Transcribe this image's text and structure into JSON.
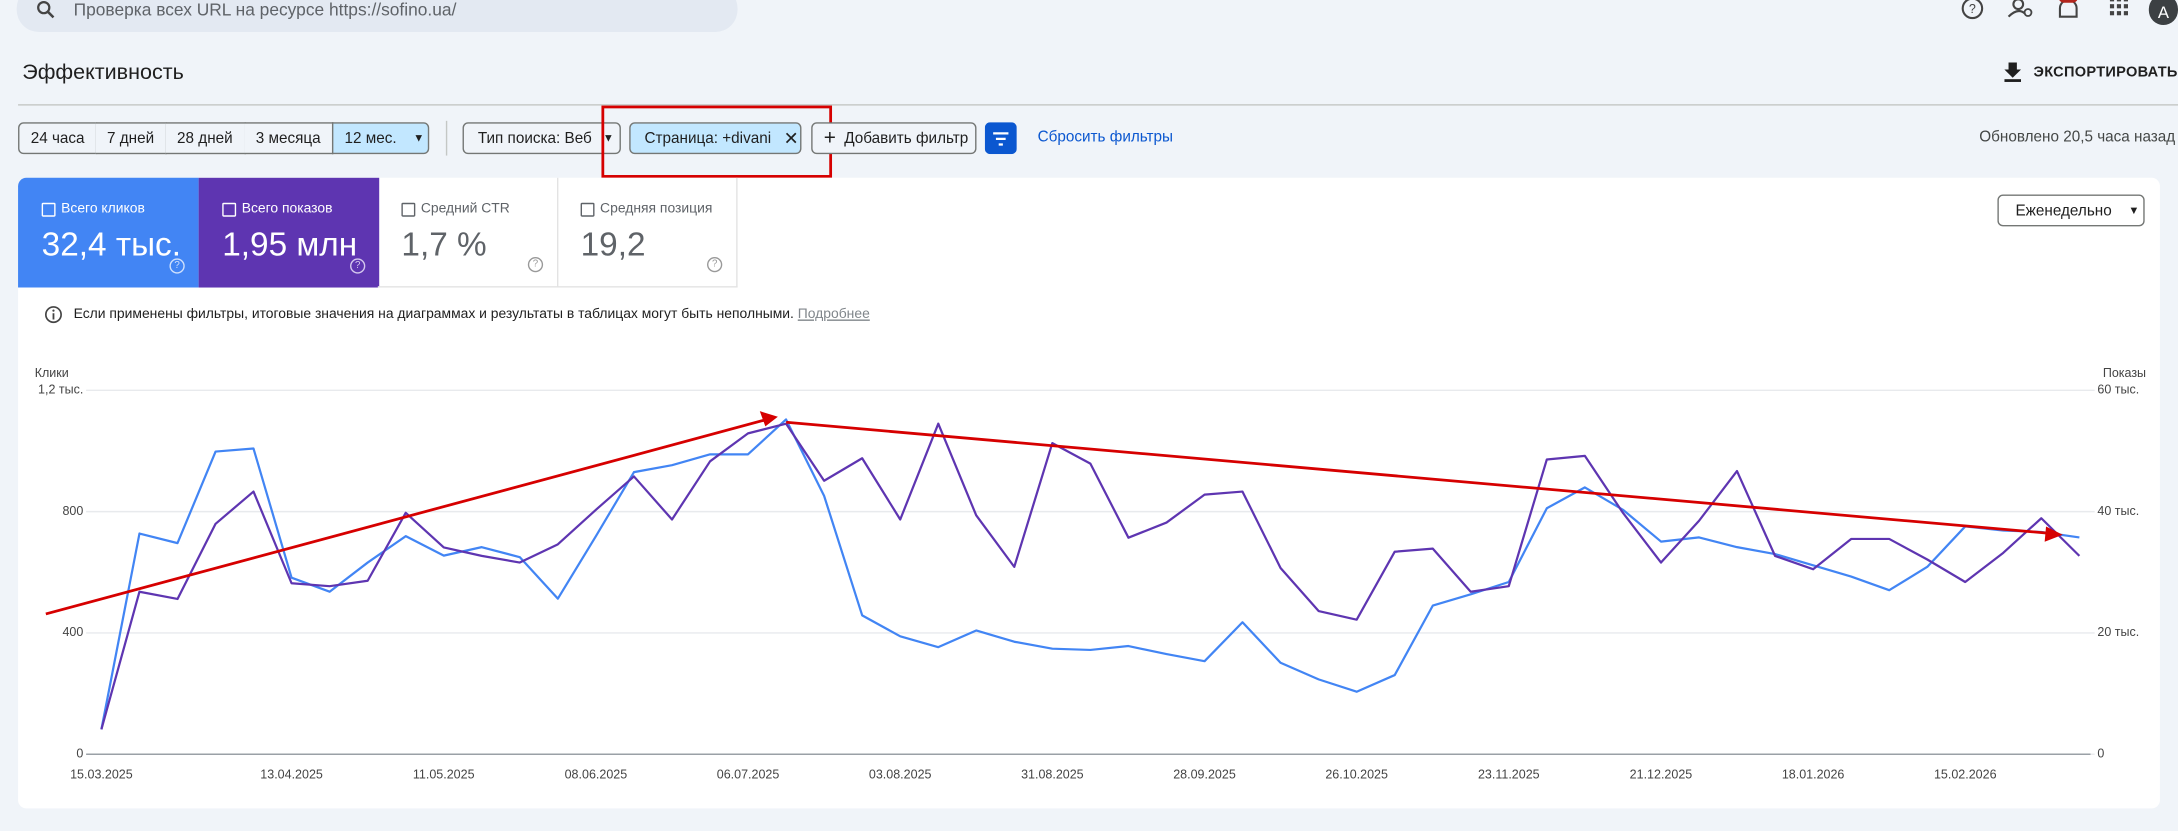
{
  "search": {
    "placeholder": "Проверка всех URL на ресурсе https://sofino.ua/"
  },
  "header": {
    "title": "Эффективность",
    "export": "ЭКСПОРТИРОВАТЬ",
    "avatar": "A"
  },
  "date_ranges": [
    "24 часа",
    "7 дней",
    "28 дней",
    "3 месяца",
    "12 мес."
  ],
  "filters": {
    "search_type": "Тип поиска: Веб",
    "page": "Страница: +divani",
    "add": "Добавить фильтр",
    "reset": "Сбросить фильтры"
  },
  "updated": "Обновлено 20,5 часа назад",
  "metrics": [
    {
      "label": "Всего кликов",
      "value": "32,4 тыс."
    },
    {
      "label": "Всего показов",
      "value": "1,95 млн"
    },
    {
      "label": "Средний CTR",
      "value": "1,7 %"
    },
    {
      "label": "Средняя позиция",
      "value": "19,2"
    }
  ],
  "notice": {
    "text": "Если применены фильтры, итоговые значения на диаграммах и результаты в таблицах могут быть неполными.",
    "link": "Подробнее"
  },
  "granularity": "Еженедельно",
  "chart_data": {
    "type": "line",
    "y_label": "Клики",
    "y2_label": "Показы",
    "categories": [
      "15.03.2025",
      null,
      null,
      null,
      null,
      "13.04.2025",
      null,
      null,
      null,
      "11.05.2025",
      null,
      null,
      null,
      "08.06.2025",
      null,
      null,
      null,
      "06.07.2025",
      null,
      null,
      null,
      "03.08.2025",
      null,
      null,
      null,
      "31.08.2025",
      null,
      null,
      null,
      "28.09.2025",
      null,
      null,
      null,
      "26.10.2025",
      null,
      null,
      null,
      "23.11.2025",
      null,
      null,
      null,
      "21.12.2025",
      null,
      null,
      null,
      "18.01.2026",
      null,
      null,
      null,
      "15.02.2026",
      null,
      null,
      null
    ],
    "series": [
      {
        "color": "#4285f4",
        "axis": "y",
        "values": [
          82,
          728,
          696,
          998,
          1008,
          582,
          536,
          632,
          719,
          655,
          683,
          650,
          513,
          719,
          930,
          953,
          989,
          989,
          1104,
          852,
          458,
          389,
          353,
          408,
          371,
          348,
          344,
          357,
          330,
          307,
          435,
          302,
          247,
          206,
          261,
          490,
          527,
          568,
          811,
          880,
          806,
          701,
          715,
          683,
          660,
          623,
          586,
          541,
          618,
          751,
          738,
          733,
          715
        ]
      },
      {
        "color": "#5e35b1",
        "axis": "y2",
        "values": [
          4100,
          26800,
          25600,
          38000,
          43300,
          28200,
          27700,
          28600,
          39800,
          34100,
          32700,
          31600,
          34600,
          40300,
          45800,
          38700,
          48300,
          52900,
          54500,
          45100,
          48800,
          38700,
          54500,
          39400,
          30900,
          51300,
          47900,
          35700,
          38200,
          42800,
          43300,
          30700,
          23600,
          22200,
          33400,
          33900,
          26800,
          27700,
          48600,
          49200,
          39800,
          31600,
          38500,
          46700,
          32700,
          30500,
          35500,
          35500,
          32100,
          28400,
          33200,
          38900,
          32700
        ]
      }
    ],
    "ylim": [
      0,
      1200
    ],
    "yticks": [
      0,
      400,
      800,
      {
        "value": 1200,
        "label": "1,2 тыс."
      }
    ],
    "y2lim": [
      0,
      60000
    ],
    "y2ticks": [
      0,
      {
        "value": 20000,
        "label": "20 тыс."
      },
      {
        "value": 40000,
        "label": "40 тыс."
      },
      {
        "value": 60000,
        "label": "60 тыс."
      }
    ],
    "grid": true
  }
}
